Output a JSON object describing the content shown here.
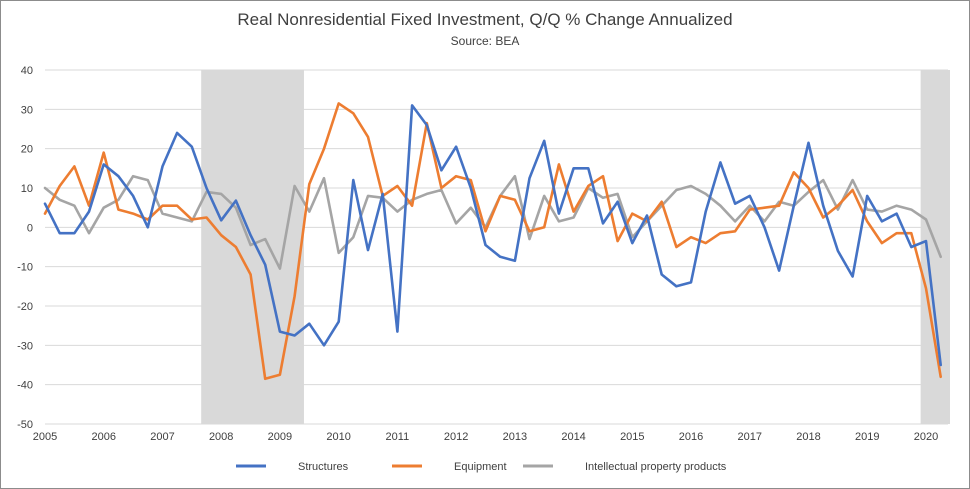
{
  "chart_data": {
    "type": "line",
    "title": "Real Nonresidential Fixed Investment, Q/Q % Change Annualized",
    "subtitle": "Source: BEA",
    "xlabel": "",
    "ylabel": "",
    "ylim": [
      -50,
      40
    ],
    "yticks": [
      40,
      30,
      20,
      10,
      0,
      -10,
      -20,
      -30,
      -40,
      -50
    ],
    "x_tick_labels": [
      "2005",
      "2006",
      "2007",
      "2008",
      "2009",
      "2010",
      "2011",
      "2012",
      "2013",
      "2014",
      "2015",
      "2016",
      "2017",
      "2018",
      "2019",
      "2020"
    ],
    "grid": "horizontal",
    "legend_position": "bottom",
    "recessions": [
      [
        "2007Q4",
        "2009Q2"
      ],
      [
        "2020Q1",
        "2020Q2"
      ]
    ],
    "recession_color": "#d9d9d9",
    "x": [
      "2005Q1",
      "2005Q2",
      "2005Q3",
      "2005Q4",
      "2006Q1",
      "2006Q2",
      "2006Q3",
      "2006Q4",
      "2007Q1",
      "2007Q2",
      "2007Q3",
      "2007Q4",
      "2008Q1",
      "2008Q2",
      "2008Q3",
      "2008Q4",
      "2009Q1",
      "2009Q2",
      "2009Q3",
      "2009Q4",
      "2010Q1",
      "2010Q2",
      "2010Q3",
      "2010Q4",
      "2011Q1",
      "2011Q2",
      "2011Q3",
      "2011Q4",
      "2012Q1",
      "2012Q2",
      "2012Q3",
      "2012Q4",
      "2013Q1",
      "2013Q2",
      "2013Q3",
      "2013Q4",
      "2014Q1",
      "2014Q2",
      "2014Q3",
      "2014Q4",
      "2015Q1",
      "2015Q2",
      "2015Q3",
      "2015Q4",
      "2016Q1",
      "2016Q2",
      "2016Q3",
      "2016Q4",
      "2017Q1",
      "2017Q2",
      "2017Q3",
      "2017Q4",
      "2018Q1",
      "2018Q2",
      "2018Q3",
      "2018Q4",
      "2019Q1",
      "2019Q2",
      "2019Q3",
      "2019Q4",
      "2020Q1",
      "2020Q2"
    ],
    "series": [
      {
        "name": "Structures",
        "color": "#4472c4",
        "values": [
          6,
          -1.5,
          -1.5,
          4,
          16,
          13,
          8,
          0,
          15.5,
          24,
          20.5,
          10,
          1.8,
          6.8,
          -2,
          -9.5,
          -26.5,
          -27.5,
          -24.5,
          -30,
          -24,
          12,
          -5.8,
          8.5,
          -26.5,
          31,
          26,
          14.5,
          20.5,
          10,
          -4.5,
          -7.5,
          -8.5,
          12.5,
          22,
          3.5,
          15,
          15,
          1,
          6.5,
          -4,
          3,
          -12,
          -15,
          -14,
          4,
          16.5,
          6,
          8,
          0,
          -11,
          5.5,
          21.5,
          5.5,
          -6,
          -12.5,
          8,
          1.5,
          3.5,
          -5,
          -3.5,
          -35
        ]
      },
      {
        "name": "Equipment",
        "color": "#ed7d31",
        "values": [
          3.5,
          10.5,
          15.5,
          5.5,
          19,
          4.5,
          3.5,
          2,
          5.5,
          5.5,
          2,
          2.5,
          -2,
          -5,
          -12,
          -38.5,
          -37.5,
          -17.5,
          11,
          20,
          31.5,
          29,
          23,
          8,
          10.5,
          5.5,
          26.5,
          10,
          13,
          12,
          -1,
          8,
          7,
          -1,
          0,
          16,
          4,
          10.5,
          13,
          -3.5,
          3.5,
          1.5,
          6.5,
          -5,
          -2.5,
          -4,
          -1.5,
          -1,
          4.5,
          5,
          5.5,
          14,
          10,
          2.5,
          5.5,
          9.5,
          1.5,
          -4,
          -1.5,
          -1.5,
          -15.5,
          -38
        ]
      },
      {
        "name": "Intellectual property products",
        "color": "#a5a5a5",
        "values": [
          10,
          7,
          5.5,
          -1.5,
          5,
          7,
          13,
          12,
          3.5,
          2.5,
          1.5,
          9,
          8.5,
          5,
          -4.5,
          -3,
          -10.5,
          10.5,
          4,
          12.5,
          -6.5,
          -2.5,
          8,
          7.5,
          4,
          7,
          8.5,
          9.5,
          1,
          5,
          0,
          8,
          13,
          -3,
          8,
          1.5,
          2.5,
          10,
          7.5,
          8.5,
          -2.5,
          1.5,
          5.5,
          9.5,
          10.5,
          8.5,
          5.5,
          1.5,
          5.5,
          1.5,
          6.5,
          5.5,
          9,
          12,
          4.5,
          12,
          4.5,
          4,
          5.5,
          4.5,
          2,
          -7.5
        ]
      }
    ]
  }
}
